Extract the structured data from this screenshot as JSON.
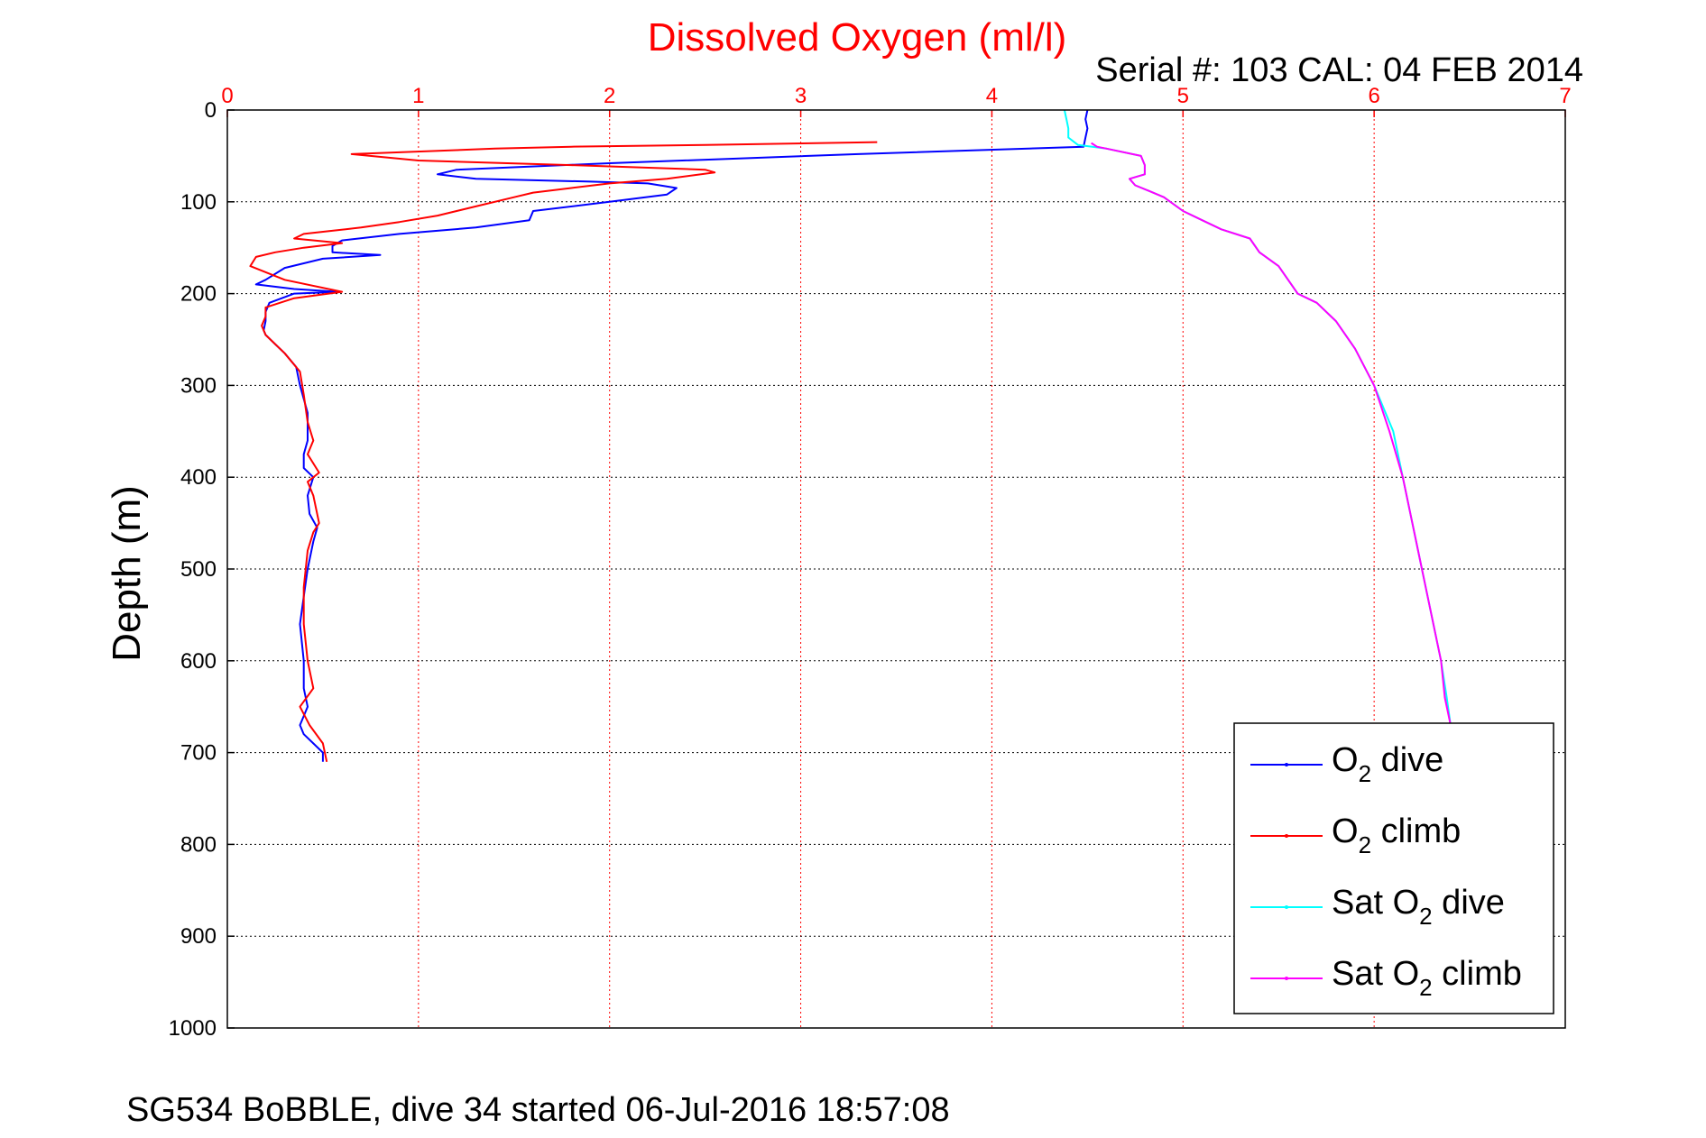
{
  "figure": {
    "serial_label": "Serial #: 103  CAL: 04 FEB 2014",
    "footer": "SG534 BoBBLE, dive 34 started 06-Jul-2016 18:57:08"
  },
  "chart_data": {
    "type": "line",
    "title": "Dissolved Oxygen (ml/l)",
    "xlabel": "",
    "ylabel": "Depth (m)",
    "xlim": [
      0,
      7
    ],
    "ylim": [
      0,
      1000
    ],
    "y_reversed": true,
    "x_axis_position": "top",
    "grid": true,
    "legend_position": "bottom-right",
    "x_ticks": [
      0,
      1,
      2,
      3,
      4,
      5,
      6,
      7
    ],
    "y_ticks": [
      0,
      100,
      200,
      300,
      400,
      500,
      600,
      700,
      800,
      900,
      1000
    ],
    "colors": {
      "title": "#ff0000",
      "x_ticks": "#ff0000",
      "o2_dive": "#0000ff",
      "o2_climb": "#ff0000",
      "sat_dive": "#00ffff",
      "sat_climb": "#ff00ff",
      "grid_x": "#ff0000",
      "grid_y": "#000000"
    },
    "series": [
      {
        "name": "O2 dive",
        "legend_text": "O",
        "legend_sub": "2",
        "legend_after": " dive",
        "color": "#0000ff",
        "x": [
          4.5,
          4.49,
          4.5,
          4.49,
          4.48,
          3.3,
          2.0,
          1.2,
          1.1,
          1.3,
          1.9,
          2.2,
          2.35,
          2.3,
          2.0,
          1.6,
          1.58,
          1.3,
          0.9,
          0.6,
          0.55,
          0.55,
          0.8,
          0.5,
          0.3,
          0.2,
          0.15,
          0.35,
          0.58,
          0.35,
          0.22,
          0.2,
          0.2,
          0.19,
          0.2,
          0.25,
          0.3,
          0.36,
          0.38,
          0.42,
          0.42,
          0.4,
          0.4,
          0.45,
          0.42,
          0.43,
          0.47,
          0.45,
          0.42,
          0.4,
          0.38,
          0.4,
          0.4,
          0.42,
          0.38,
          0.4,
          0.45,
          0.5,
          0.5
        ],
        "y": [
          0,
          10,
          20,
          30,
          40,
          48,
          58,
          65,
          70,
          75,
          78,
          80,
          85,
          92,
          100,
          110,
          120,
          128,
          135,
          142,
          148,
          155,
          158,
          162,
          172,
          185,
          190,
          195,
          198,
          200,
          210,
          220,
          230,
          240,
          245,
          255,
          265,
          280,
          300,
          330,
          360,
          375,
          390,
          400,
          420,
          440,
          455,
          470,
          500,
          530,
          560,
          600,
          630,
          650,
          670,
          680,
          690,
          700,
          710
        ]
      },
      {
        "name": "O2 climb",
        "legend_text": "O",
        "legend_sub": "2",
        "legend_after": " climb",
        "color": "#ff0000",
        "x": [
          3.4,
          2.5,
          1.8,
          1.4,
          0.65,
          1.0,
          1.8,
          2.5,
          2.55,
          2.3,
          2.0,
          1.8,
          1.6,
          1.5,
          1.3,
          1.1,
          0.9,
          0.7,
          0.4,
          0.35,
          0.6,
          0.4,
          0.25,
          0.15,
          0.12,
          0.3,
          0.6,
          0.35,
          0.2,
          0.2,
          0.18,
          0.2,
          0.3,
          0.38,
          0.4,
          0.42,
          0.45,
          0.42,
          0.48,
          0.42,
          0.45,
          0.48,
          0.45,
          0.42,
          0.4,
          0.4,
          0.42,
          0.45,
          0.38,
          0.43,
          0.5,
          0.52
        ],
        "y": [
          35,
          38,
          40,
          42,
          48,
          55,
          60,
          65,
          68,
          75,
          80,
          85,
          90,
          95,
          105,
          115,
          122,
          128,
          135,
          140,
          145,
          150,
          155,
          160,
          170,
          185,
          198,
          205,
          215,
          225,
          235,
          245,
          265,
          285,
          310,
          340,
          360,
          375,
          395,
          405,
          420,
          450,
          460,
          480,
          520,
          560,
          600,
          630,
          650,
          670,
          690,
          710
        ]
      },
      {
        "name": "Sat O2 dive",
        "legend_text": "Sat O",
        "legend_sub": "2",
        "legend_after": " dive",
        "color": "#00ffff",
        "x": [
          4.38,
          4.39,
          4.4,
          4.4,
          4.45,
          4.6,
          4.78,
          4.8,
          4.8,
          4.72,
          4.75,
          4.82,
          4.9,
          5.0,
          5.1,
          5.2,
          5.35,
          5.4,
          5.5,
          5.55,
          5.6,
          5.7,
          5.8,
          5.9,
          6.0,
          6.1,
          6.15,
          6.2,
          6.25,
          6.3,
          6.35,
          6.38,
          6.4
        ],
        "y": [
          0,
          10,
          20,
          30,
          38,
          42,
          50,
          60,
          70,
          75,
          82,
          88,
          95,
          110,
          120,
          130,
          140,
          155,
          170,
          185,
          200,
          210,
          230,
          260,
          300,
          350,
          400,
          450,
          500,
          550,
          600,
          640,
          670
        ]
      },
      {
        "name": "Sat O2 climb",
        "legend_text": "Sat O",
        "legend_sub": "2",
        "legend_after": " climb",
        "color": "#ff00ff",
        "x": [
          4.52,
          4.55,
          4.6,
          4.78,
          4.8,
          4.8,
          4.72,
          4.75,
          4.82,
          4.9,
          5.0,
          5.1,
          5.2,
          5.35,
          5.4,
          5.5,
          5.55,
          5.6,
          5.7,
          5.8,
          5.9,
          6.0,
          6.08,
          6.15,
          6.2,
          6.25,
          6.3,
          6.35,
          6.37,
          6.4
        ],
        "y": [
          36,
          40,
          42,
          50,
          60,
          70,
          75,
          82,
          88,
          95,
          110,
          120,
          130,
          140,
          155,
          170,
          185,
          200,
          210,
          230,
          260,
          300,
          350,
          400,
          450,
          500,
          550,
          600,
          640,
          670
        ]
      }
    ]
  }
}
